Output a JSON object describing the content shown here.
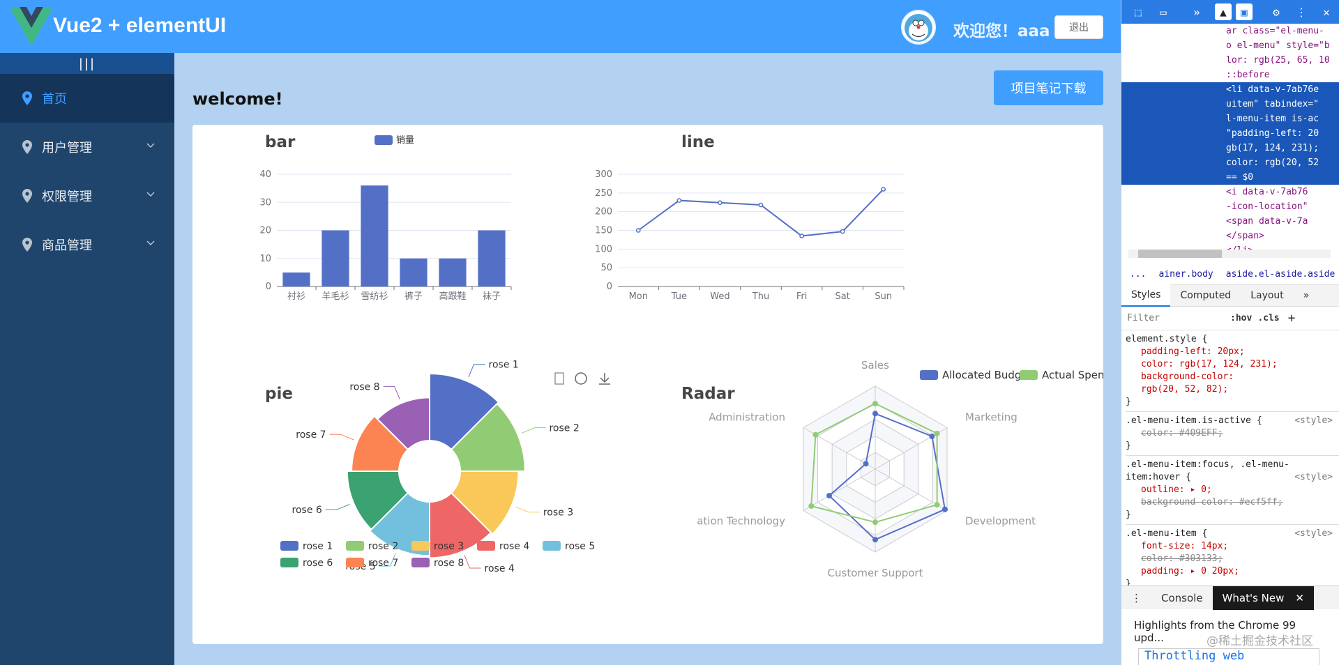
{
  "header": {
    "brand": "Vue2 + elementUI",
    "greeting": "欢迎您！aaa",
    "logout_label": "退出"
  },
  "aside": {
    "toggle_label": "|||",
    "items": [
      {
        "label": "首页",
        "active": true
      },
      {
        "label": "用户管理"
      },
      {
        "label": "权限管理"
      },
      {
        "label": "商品管理"
      }
    ]
  },
  "main": {
    "title": "welcome!",
    "download_label": "项目笔记下载"
  },
  "bar": {
    "title": "bar",
    "legend": "销量",
    "chart_data": {
      "type": "bar",
      "categories": [
        "衬衫",
        "羊毛衫",
        "雪纺衫",
        "裤子",
        "高跟鞋",
        "袜子"
      ],
      "values": [
        5,
        20,
        36,
        10,
        10,
        20
      ],
      "ylim": [
        0,
        40
      ],
      "yticks": [
        "0",
        "10",
        "20",
        "30",
        "40"
      ]
    }
  },
  "line": {
    "title": "line",
    "chart_data": {
      "type": "line",
      "categories": [
        "Mon",
        "Tue",
        "Wed",
        "Thu",
        "Fri",
        "Sat",
        "Sun"
      ],
      "values": [
        150,
        230,
        224,
        218,
        135,
        147,
        260
      ],
      "ylim": [
        0,
        300
      ],
      "yticks": [
        "0",
        "50",
        "100",
        "150",
        "200",
        "250",
        "300"
      ]
    }
  },
  "pie": {
    "title": "pie",
    "toolbox": [
      "data-view",
      "restore",
      "save-image"
    ],
    "chart_data": {
      "type": "pie",
      "rose": true,
      "labels": [
        "rose 1",
        "rose 2",
        "rose 3",
        "rose 4",
        "rose 5",
        "rose 6",
        "rose 7",
        "rose 8"
      ],
      "values": [
        40,
        38,
        32,
        30,
        28,
        26,
        22,
        18
      ],
      "colors": [
        "#5470c6",
        "#91cc75",
        "#fac858",
        "#ee6666",
        "#73c0de",
        "#3ba272",
        "#fc8452",
        "#9a60b4"
      ]
    }
  },
  "radar": {
    "title": "Radar",
    "chart_data": {
      "type": "radar",
      "indicators": [
        "Sales",
        "Marketing",
        "Development",
        "Customer Support",
        "ation Technology",
        "Administration"
      ],
      "series": [
        {
          "name": "Allocated Budget",
          "color": "#5470c6",
          "values": [
            0.67,
            0.79,
            0.97,
            0.85,
            0.64,
            0.13
          ]
        },
        {
          "name": "Actual Spending",
          "color": "#91cc75",
          "values": [
            0.79,
            0.86,
            0.86,
            0.64,
            0.89,
            0.83
          ]
        }
      ]
    }
  },
  "devtools": {
    "dom_lines": [
      "ar class=\"el-menu-",
      "o el-menu\" style=\"b",
      "lor: rgb(25, 65, 10",
      "::before",
      "<li data-v-7ab76e",
      "uitem\" tabindex=\"",
      "l-menu-item is-ac",
      "\"padding-left: 20",
      "gb(17, 124, 231);",
      "color: rgb(20, 52",
      "== $0",
      "<i data-v-7ab76",
      "-icon-location\"",
      "<span data-v-7a",
      "</span>",
      "</li>"
    ],
    "breadcrumb": [
      "...",
      "ainer.body",
      "aside.el-aside.aside",
      "d",
      "..."
    ],
    "tabs": [
      "Styles",
      "Computed",
      "Layout",
      "»"
    ],
    "filter_placeholder": "Filter",
    "filter_tools": [
      ":hov",
      ".cls",
      "+"
    ],
    "rules": [
      {
        "selector": "element.style {",
        "source": "",
        "props": [
          "padding-left: 20px;",
          "color: rgb(17, 124, 231);",
          "background-color:",
          "rgb(20, 52, 82);"
        ]
      },
      {
        "selector": ".el-menu-item.is-active {",
        "source": "<style>",
        "props": [
          "color: #409EFF;"
        ]
      },
      {
        "selector": ".el-menu-item:focus, .el-menu-item:hover {",
        "source": "<style>",
        "props": [
          "outline: ▸ 0;",
          "background-color: #ecf5ff;"
        ]
      },
      {
        "selector": ".el-menu-item {",
        "source": "<style>",
        "props": [
          "font-size: 14px;",
          "color: #303133;",
          "padding: ▸ 0 20px;"
        ]
      }
    ],
    "drawer_tabs": [
      "Console",
      "What's New"
    ],
    "news": "Highlights from the Chrome 99 upd...",
    "throttle": "Throttling web",
    "watermark": "@稀土掘金技术社区"
  }
}
